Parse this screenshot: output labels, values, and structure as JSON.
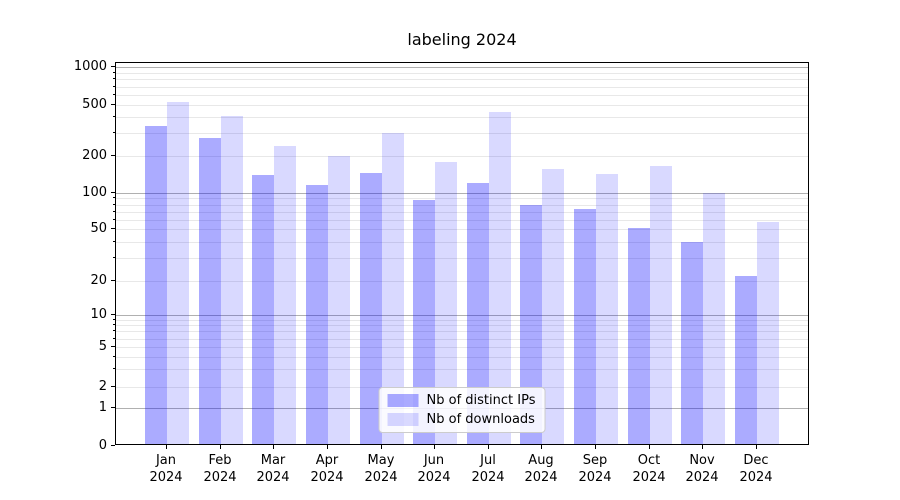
{
  "chart_data": {
    "type": "bar",
    "title": "labeling 2024",
    "year_label": "2024",
    "categories": [
      "Jan",
      "Feb",
      "Mar",
      "Apr",
      "May",
      "Jun",
      "Jul",
      "Aug",
      "Sep",
      "Oct",
      "Nov",
      "Dec"
    ],
    "series": [
      {
        "name": "Nb of distinct IPs",
        "color": "rgba(0,0,255,0.33)",
        "values": [
          340,
          275,
          140,
          117,
          145,
          88,
          120,
          80,
          74,
          51,
          40,
          22
        ]
      },
      {
        "name": "Nb of downloads",
        "color": "rgba(0,0,255,0.15)",
        "values": [
          530,
          410,
          240,
          200,
          300,
          180,
          440,
          157,
          143,
          166,
          100,
          57
        ]
      }
    ],
    "yscale": "symlog",
    "ylim": [
      0,
      1000
    ],
    "yticks": [
      "0",
      "1",
      "2",
      "5",
      "10",
      "20",
      "50",
      "100",
      "200",
      "500",
      "1000"
    ],
    "grid": "horizontal, major and minor",
    "legend_position": "lower center"
  },
  "colors": {
    "bar_dark": "rgba(0,0,255,0.33)",
    "bar_light": "rgba(0,0,255,0.15)",
    "grid_major": "#b0b0b0",
    "grid_minor": "#e8e8e8",
    "spine": "#000000"
  }
}
